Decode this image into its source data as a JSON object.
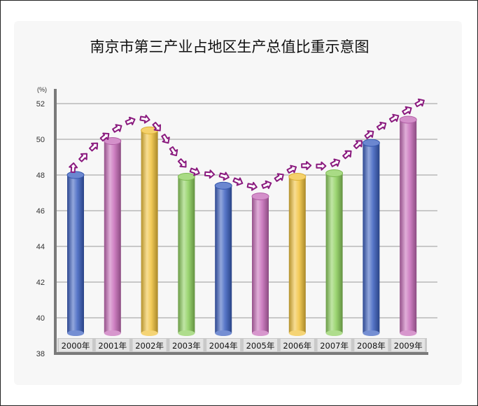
{
  "chart_data": {
    "type": "bar",
    "title": "南京市第三产业占地区生产总值比重示意图",
    "unit_label": "(%)",
    "categories": [
      "2000年",
      "2001年",
      "2002年",
      "2003年",
      "2004年",
      "2005年",
      "2006年",
      "2007年",
      "2008年",
      "2009年"
    ],
    "values": [
      48.0,
      49.9,
      50.5,
      47.9,
      47.4,
      46.8,
      47.9,
      48.1,
      49.8,
      51.1
    ],
    "ylim": [
      38,
      52
    ],
    "yticks": [
      38,
      40,
      42,
      44,
      46,
      48,
      50,
      52
    ],
    "grid": true,
    "bar_colors": [
      "#3a5fc0",
      "#c66bb8",
      "#f1c23a",
      "#8ccf5c",
      "#3a5fc0",
      "#c66bb8",
      "#f1c23a",
      "#8ccf5c",
      "#3a5fc0",
      "#c66bb8"
    ],
    "arrow_color": "#8a1a7e"
  }
}
